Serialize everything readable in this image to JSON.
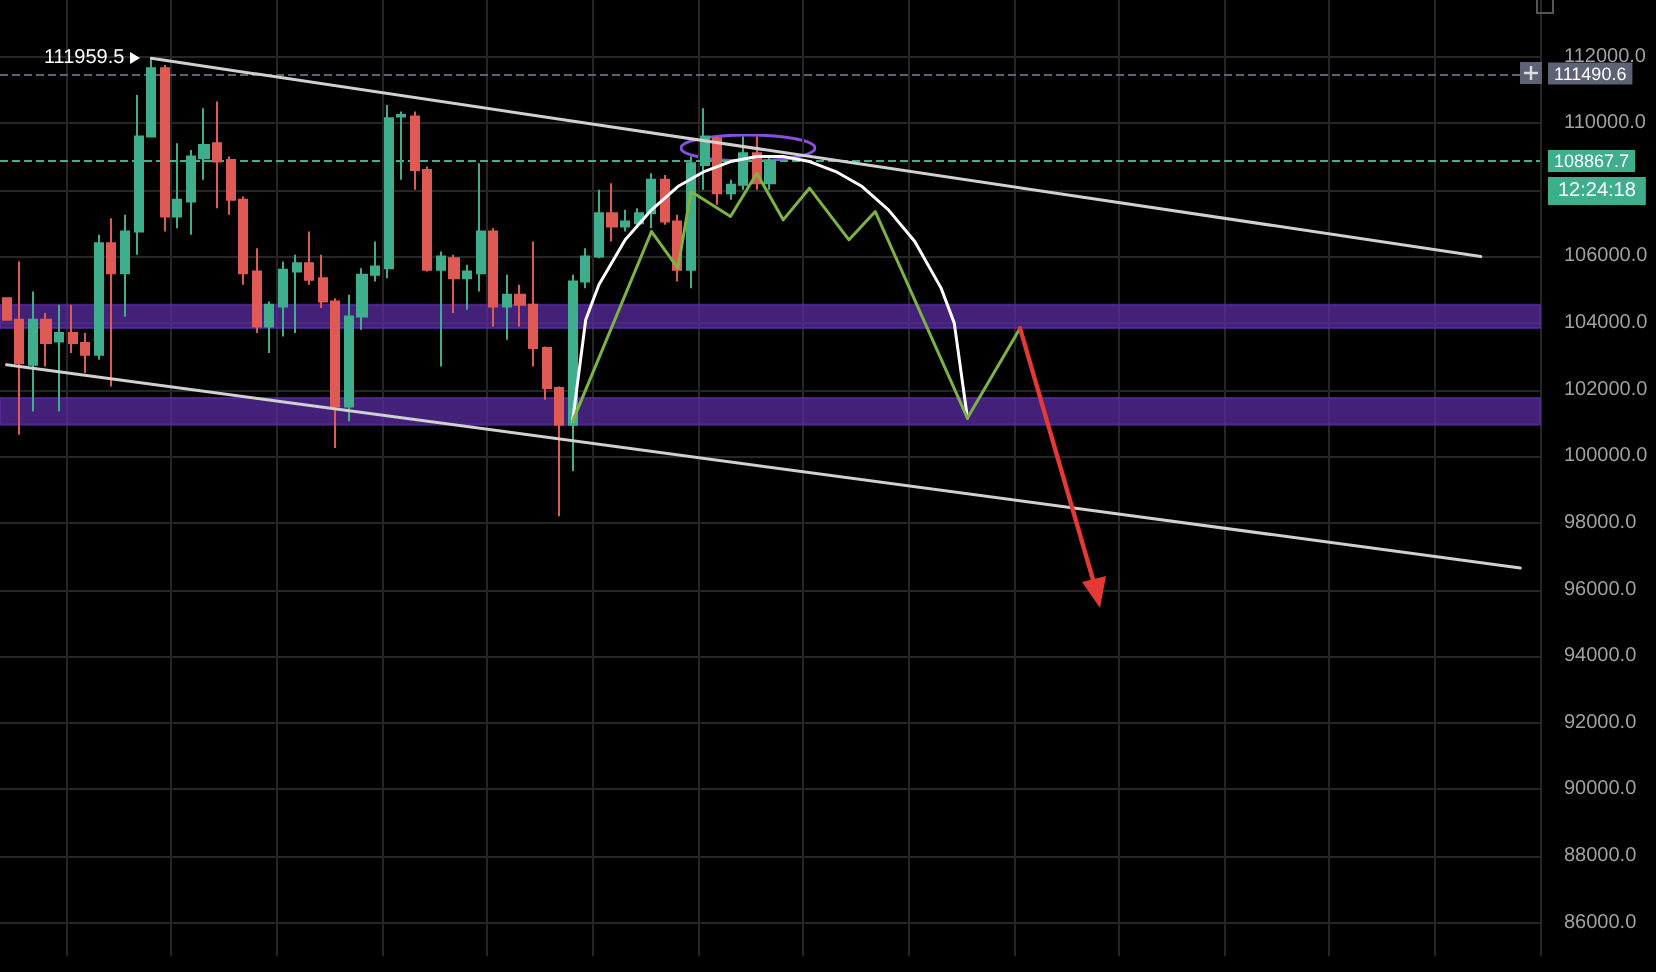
{
  "chart_data": {
    "type": "candlestick",
    "categories": [
      null,
      null,
      null,
      null,
      null,
      null,
      null,
      null,
      null,
      null,
      null,
      null,
      null,
      null,
      null,
      null,
      null,
      null,
      null,
      null,
      null,
      null,
      null,
      null,
      null,
      null,
      null,
      null,
      null,
      null,
      null,
      null,
      null,
      null,
      null,
      null,
      null,
      null,
      null,
      null,
      null,
      null,
      null,
      null,
      null,
      null,
      null,
      null,
      null,
      null,
      null,
      null,
      null,
      null,
      null,
      null,
      null,
      null,
      null,
      null,
      null,
      null,
      null,
      null,
      null,
      null,
      null,
      null,
      null,
      null,
      null,
      null,
      null,
      null,
      null,
      null,
      null,
      null,
      null,
      null,
      null,
      null,
      null,
      null,
      null,
      null,
      null,
      null,
      null,
      null,
      null,
      null,
      null,
      null,
      null,
      null,
      null,
      null,
      null,
      null,
      null,
      null,
      null,
      null,
      null,
      null,
      null,
      null,
      null,
      null,
      null,
      null,
      null,
      null,
      null,
      null,
      null
    ],
    "ohlc": [
      [
        104750,
        104750,
        104100,
        104100
      ],
      [
        104100,
        105850,
        100650,
        102800
      ],
      [
        102750,
        104950,
        101350,
        104100
      ],
      [
        104100,
        104300,
        102700,
        103400
      ],
      [
        103450,
        104550,
        101350,
        103700
      ],
      [
        103700,
        104550,
        103100,
        103400
      ],
      [
        103400,
        103700,
        102500,
        103050
      ],
      [
        103050,
        106650,
        102900,
        106400
      ],
      [
        106400,
        107150,
        102100,
        105500
      ],
      [
        105500,
        107250,
        104200,
        106750
      ],
      [
        106750,
        110850,
        106050,
        109600
      ],
      [
        109600,
        111959.5,
        109600,
        111650
      ],
      [
        111650,
        111750,
        106750,
        107200
      ],
      [
        107200,
        109400,
        106850,
        107700
      ],
      [
        107650,
        109200,
        106650,
        109000
      ],
      [
        108950,
        110450,
        108300,
        109350
      ],
      [
        109400,
        110650,
        107450,
        108850
      ],
      [
        108900,
        109000,
        107250,
        107700
      ],
      [
        107700,
        107800,
        105150,
        105500
      ],
      [
        105550,
        106250,
        103700,
        103900
      ],
      [
        103900,
        104650,
        103100,
        104550
      ],
      [
        104500,
        105850,
        103600,
        105600
      ],
      [
        105550,
        106050,
        103700,
        105800
      ],
      [
        105800,
        106750,
        105150,
        105300
      ],
      [
        105350,
        106050,
        104450,
        104650
      ],
      [
        104650,
        104750,
        100250,
        101500
      ],
      [
        101500,
        104850,
        101050,
        104200
      ],
      [
        104200,
        105650,
        103800,
        105450
      ],
      [
        105450,
        106450,
        105250,
        105700
      ],
      [
        105650,
        110550,
        105350,
        110150
      ],
      [
        110200,
        110350,
        108300,
        110250
      ],
      [
        110200,
        110350,
        108000,
        108600
      ],
      [
        108600,
        108700,
        105550,
        105600
      ],
      [
        105600,
        106150,
        102700,
        106000
      ],
      [
        105950,
        106050,
        104300,
        105350
      ],
      [
        105350,
        105750,
        104400,
        105550
      ],
      [
        105500,
        108800,
        104950,
        106750
      ],
      [
        106750,
        106850,
        103900,
        104500
      ],
      [
        104500,
        105450,
        103500,
        104850
      ],
      [
        104850,
        105150,
        103900,
        104550
      ],
      [
        104550,
        106450,
        102700,
        103250
      ],
      [
        103250,
        103300,
        101700,
        102050
      ],
      [
        102050,
        102100,
        98200,
        100950
      ],
      [
        100950,
        105450,
        99550,
        105250
      ],
      [
        105250,
        106250,
        105050,
        106000
      ],
      [
        106000,
        108000,
        105950,
        107300
      ],
      [
        107300,
        108200,
        106450,
        106900
      ],
      [
        106900,
        107400,
        106750,
        107050
      ],
      [
        107000,
        107450,
        106850,
        107300
      ],
      [
        107300,
        108500,
        106850,
        108300
      ],
      [
        108300,
        108450,
        106950,
        107050
      ],
      [
        107050,
        107250,
        105250,
        105600
      ],
      [
        105600,
        109000,
        105050,
        108800
      ],
      [
        108750,
        110450,
        108000,
        109600
      ],
      [
        109550,
        109600,
        107550,
        107900
      ],
      [
        107900,
        108300,
        107700,
        108150
      ],
      [
        108150,
        109600,
        108000,
        109100
      ],
      [
        109100,
        109600,
        108000,
        108200
      ],
      [
        108200,
        109000,
        108000,
        108867.7
      ],
      null,
      null,
      null,
      null,
      null,
      null,
      null,
      null,
      null,
      null,
      null,
      null,
      null,
      null,
      null,
      null,
      null,
      null,
      null,
      null,
      null,
      null,
      null,
      null,
      null,
      null,
      null,
      null,
      null,
      null,
      null,
      null,
      null,
      null,
      null,
      null,
      null,
      null,
      null,
      null,
      null,
      null,
      null,
      null,
      null,
      null,
      null,
      null,
      null,
      null,
      null,
      null,
      null,
      null,
      null,
      null,
      null,
      null
    ],
    "colors": [
      "#e05a55",
      "#e05a55",
      "#3fae8c",
      "#e05a55",
      "#3fae8c",
      "#e05a55",
      "#e05a55",
      "#3fae8c",
      "#e05a55",
      "#3fae8c",
      "#3fae8c",
      "#3fae8c",
      "#e05a55",
      "#3fae8c",
      "#3fae8c",
      "#3fae8c",
      "#e05a55",
      "#e05a55",
      "#e05a55",
      "#e05a55",
      "#3fae8c",
      "#3fae8c",
      "#3fae8c",
      "#e05a55",
      "#e05a55",
      "#e05a55",
      "#3fae8c",
      "#3fae8c",
      "#3fae8c",
      "#3fae8c",
      "#3fae8c",
      "#e05a55",
      "#e05a55",
      "#3fae8c",
      "#e05a55",
      "#3fae8c",
      "#3fae8c",
      "#e05a55",
      "#3fae8c",
      "#e05a55",
      "#e05a55",
      "#e05a55",
      "#e05a55",
      "#3fae8c",
      "#3fae8c",
      "#3fae8c",
      "#e05a55",
      "#3fae8c",
      "#3fae8c",
      "#3fae8c",
      "#e05a55",
      "#e05a55",
      "#3fae8c",
      "#3fae8c",
      "#e05a55",
      "#3fae8c",
      "#3fae8c",
      "#e05a55",
      "#3fae8c",
      null,
      null,
      null,
      null,
      null,
      null,
      null,
      null,
      null,
      null,
      null,
      null,
      null,
      null,
      null,
      null,
      null,
      null,
      null,
      null,
      null,
      null,
      null,
      null,
      null,
      null,
      null,
      null,
      null,
      null,
      null,
      null,
      null,
      null,
      null,
      null,
      null,
      null,
      null,
      null,
      null,
      null,
      null,
      null,
      null,
      null,
      null,
      null,
      null,
      null,
      null,
      null,
      null,
      null,
      null,
      null,
      null,
      null
    ],
    "series": [
      {
        "type": "line",
        "color": "#d0d0d0",
        "values": [
          null,
          null,
          null,
          null,
          null,
          null,
          null,
          null,
          null,
          null,
          null,
          111950,
          null,
          null,
          null,
          null,
          null,
          null,
          null,
          null,
          null,
          null,
          null,
          null,
          null,
          null,
          null,
          null,
          null,
          null,
          null,
          null,
          null,
          null,
          null,
          null,
          null,
          null,
          null,
          null,
          null,
          null,
          null,
          null,
          null,
          null,
          null,
          null,
          null,
          null,
          null,
          null,
          null,
          null,
          null,
          null,
          null,
          null,
          null,
          null,
          null,
          null,
          null,
          null,
          null,
          null,
          null,
          null,
          null,
          null,
          null,
          null,
          null,
          null,
          null,
          null,
          null,
          null,
          null,
          null,
          null,
          null,
          null,
          null,
          null,
          null,
          null,
          null,
          null,
          null,
          null,
          null,
          null,
          null,
          null,
          null,
          null,
          null,
          null,
          null,
          null,
          null,
          null,
          null,
          null,
          null,
          null,
          null,
          null,
          null,
          null,
          null,
          106000,
          null,
          null,
          null,
          null
        ]
      },
      {
        "type": "line",
        "color": "#d0d0d0",
        "values": [
          102750,
          null,
          null,
          null,
          null,
          null,
          null,
          null,
          null,
          null,
          null,
          null,
          null,
          null,
          null,
          null,
          null,
          null,
          null,
          null,
          null,
          null,
          null,
          null,
          null,
          null,
          null,
          null,
          null,
          null,
          null,
          null,
          null,
          null,
          null,
          null,
          null,
          null,
          null,
          null,
          null,
          null,
          null,
          null,
          null,
          null,
          null,
          null,
          null,
          null,
          null,
          null,
          null,
          null,
          null,
          null,
          null,
          null,
          null,
          null,
          null,
          null,
          null,
          null,
          null,
          null,
          null,
          null,
          null,
          null,
          null,
          null,
          null,
          null,
          null,
          null,
          null,
          null,
          null,
          null,
          null,
          null,
          null,
          null,
          null,
          null,
          null,
          null,
          null,
          null,
          null,
          null,
          null,
          null,
          null,
          null,
          null,
          null,
          null,
          null,
          null,
          null,
          null,
          null,
          null,
          null,
          null,
          null,
          null,
          null,
          null,
          null,
          null,
          null,
          null,
          96650,
          null
        ]
      },
      {
        "type": "line",
        "color": "#ffffff",
        "values": [
          null,
          null,
          null,
          null,
          null,
          null,
          null,
          null,
          null,
          null,
          null,
          null,
          null,
          null,
          null,
          null,
          null,
          null,
          null,
          null,
          null,
          null,
          null,
          null,
          null,
          null,
          null,
          null,
          null,
          null,
          null,
          null,
          null,
          null,
          null,
          null,
          null,
          null,
          null,
          null,
          null,
          null,
          null,
          101050,
          104100,
          105150,
          null,
          106500,
          null,
          107400,
          null,
          108100,
          null,
          108550,
          null,
          108850,
          null,
          109000,
          null,
          109000,
          null,
          108850,
          null,
          108550,
          null,
          108100,
          null,
          107400,
          null,
          106450,
          null,
          105050,
          104000,
          101150,
          null,
          null,
          null,
          null,
          null,
          null,
          null,
          null,
          null,
          null,
          null,
          null,
          null,
          null,
          null,
          null,
          null,
          null,
          null,
          null,
          null,
          null,
          null,
          null,
          null,
          null,
          null,
          null,
          null,
          null,
          null,
          null,
          null,
          null,
          null,
          null,
          null,
          null,
          null,
          null,
          null,
          null,
          null
        ]
      },
      {
        "type": "line",
        "color": "#7cb342",
        "values": [
          null,
          null,
          null,
          null,
          null,
          null,
          null,
          null,
          null,
          null,
          null,
          null,
          null,
          null,
          null,
          null,
          null,
          null,
          null,
          null,
          null,
          null,
          null,
          null,
          null,
          null,
          null,
          null,
          null,
          null,
          null,
          null,
          null,
          null,
          null,
          null,
          null,
          null,
          null,
          null,
          null,
          null,
          null,
          101050,
          null,
          null,
          null,
          null,
          null,
          106750,
          null,
          105650,
          107950,
          null,
          null,
          107200,
          null,
          108500,
          null,
          107100,
          null,
          108050,
          null,
          null,
          106500,
          null,
          107350,
          null,
          null,
          null,
          null,
          null,
          null,
          101150,
          null,
          null,
          null,
          103850,
          null,
          null,
          null,
          null,
          null,
          null,
          null,
          null,
          null,
          null,
          null,
          null,
          null,
          null,
          null,
          null,
          null,
          null,
          null,
          null,
          null,
          null,
          null,
          null,
          null,
          null,
          null,
          null,
          null,
          null,
          null,
          null,
          null,
          null,
          null,
          null,
          null,
          null,
          null
        ]
      }
    ],
    "ylim": [
      85000,
      113700
    ],
    "yticks": [
      {
        "value": 86000,
        "label": "86000.0"
      },
      {
        "value": 88000,
        "label": "88000.0"
      },
      {
        "value": 90000,
        "label": "90000.0"
      },
      {
        "value": 92000,
        "label": "92000.0"
      },
      {
        "value": 94000,
        "label": "94000.0"
      },
      {
        "value": 96000,
        "label": "96000.0"
      },
      {
        "value": 98000,
        "label": "98000.0"
      },
      {
        "value": 100000,
        "label": "100000.0"
      },
      {
        "value": 102000,
        "label": "102000.0"
      },
      {
        "value": 104000,
        "label": "104000.0"
      },
      {
        "value": 106000,
        "label": "106000.0"
      },
      {
        "value": 108000,
        "label": null
      },
      {
        "value": 110000,
        "label": "110000.0"
      },
      {
        "value": 112000,
        "label": "112000.0"
      }
    ],
    "bands": [
      {
        "axis": "y",
        "from": 103850,
        "to": 104550,
        "color": "#5a2ca0"
      },
      {
        "axis": "y",
        "from": 100950,
        "to": 101750,
        "color": "#5a2ca0"
      }
    ],
    "ref_lines": [
      {
        "axis": "y",
        "value": 111490.6,
        "label": "111490.6",
        "color": "#5d6275",
        "line_style": "dashed"
      },
      {
        "axis": "y",
        "value": 108867.7,
        "label": "108867.7",
        "color": "#3fae8c",
        "line_style": "dashed"
      }
    ],
    "annotations": [
      "111959.5",
      "12:24:18"
    ],
    "grid": true,
    "marker": "none",
    "line_style": "solid"
  }
}
